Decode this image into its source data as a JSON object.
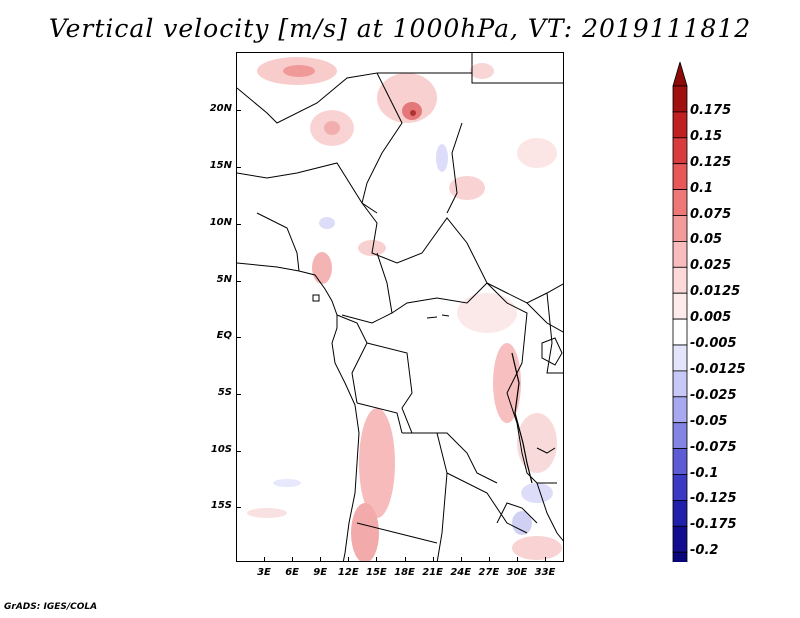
{
  "title": "Vertical velocity [m/s] at 1000hPa, VT: 2019111812",
  "footer": "GrADS: IGES/COLA",
  "map": {
    "lat_labels": [
      "20N",
      "15N",
      "10N",
      "5N",
      "EQ",
      "5S",
      "10S",
      "15S"
    ],
    "lon_labels": [
      "3E",
      "6E",
      "9E",
      "12E",
      "15E",
      "18E",
      "21E",
      "24E",
      "27E",
      "30E",
      "33E"
    ],
    "extent": {
      "lon_min": 0,
      "lon_max": 35,
      "lat_min": -20,
      "lat_max": 25
    }
  },
  "colorbar": {
    "labels": [
      "0.175",
      "0.15",
      "0.125",
      "0.1",
      "0.075",
      "0.05",
      "0.025",
      "0.0125",
      "0.005",
      "-0.005",
      "-0.0125",
      "-0.025",
      "-0.05",
      "-0.075",
      "-0.1",
      "-0.125",
      "-0.175",
      "-0.2"
    ],
    "colors": [
      "#a01010",
      "#c02020",
      "#d83c3c",
      "#e85858",
      "#ee7878",
      "#f49a9a",
      "#f8bcbc",
      "#fcd8d8",
      "#fdeaea",
      "#ffffff",
      "#e4e4fc",
      "#c8c8f6",
      "#a8a8f0",
      "#8484e4",
      "#5c5cd4",
      "#3a3ac4",
      "#2020aa",
      "#120c90",
      "#08047a"
    ],
    "arrow_top_color": "#8c0a0a",
    "arrow_bottom_color": "#0a0070"
  }
}
